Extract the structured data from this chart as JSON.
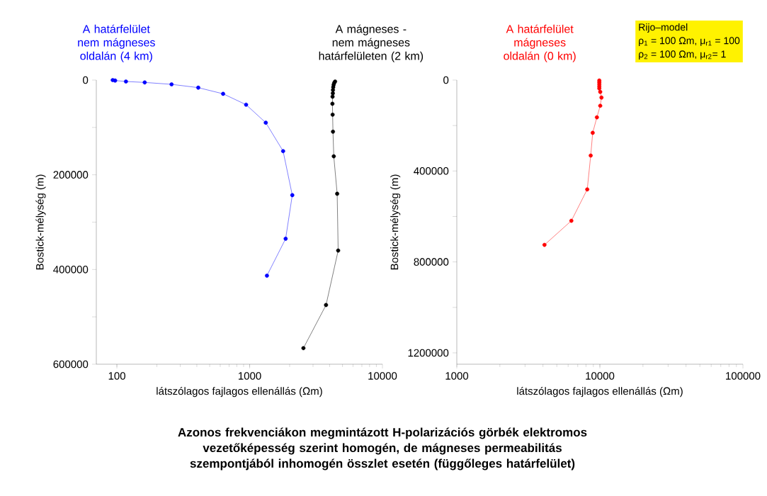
{
  "chart_data": [
    {
      "type": "line",
      "title": "Azonos frekvenciákon megmintázott H-polarizációs görbék elektromos vezetőképesség szerint homogén, de mágneses permeabilitás szempontjából inhomogén összlet esetén (függőleges határfelület)",
      "xlabel": "látszólagos fajlagos ellenállás (Ωm)",
      "ylabel": "Bostick-mélység (m)",
      "log": "x",
      "marker": "circle",
      "xlim": [
        70,
        10000
      ],
      "xticks": [
        100,
        1000,
        10000
      ],
      "ylim": [
        600000,
        0
      ],
      "yticks": [
        0,
        {
          "value": 100000,
          "label": null
        },
        200000,
        {
          "value": 300000,
          "label": null
        },
        400000,
        {
          "value": 500000,
          "label": null
        },
        600000
      ],
      "series": [
        {
          "name": "A határfelület nem mágneses oldalán (4 km)",
          "color": "#0000ff",
          "x": [
            93,
            97,
            117,
            162,
            258,
            410,
            631,
            940,
            1322,
            1786,
            2094,
            1866,
            1349
          ],
          "values": [
            0,
            1000,
            3000,
            5000,
            9000,
            16000,
            29000,
            52000,
            90000,
            150000,
            243000,
            335000,
            413000
          ]
        },
        {
          "name": "A mágneses - nem mágneses határfelületen (2 km)",
          "color": "#000000",
          "x": [
            4400,
            4330,
            4290,
            4260,
            4240,
            4230,
            4210,
            4200,
            4215,
            4240,
            4300,
            4560,
            4640,
            3760,
            2540
          ],
          "values": [
            3000,
            6000,
            10000,
            15000,
            21000,
            28000,
            35000,
            50000,
            73000,
            109000,
            161000,
            240000,
            360000,
            475000,
            566000
          ]
        }
      ]
    },
    {
      "type": "line",
      "xlabel": "látszólagos fajlagos ellenállás (Ωm)",
      "ylabel": "Bostick-mélység (m)",
      "log": "x",
      "marker": "circle",
      "xlim": [
        1000,
        100000
      ],
      "xticks": [
        1000,
        10000,
        100000
      ],
      "ylim": [
        1250000,
        0
      ],
      "yticks": [
        0,
        {
          "value": 200000,
          "label": null
        },
        400000,
        {
          "value": 600000,
          "label": null
        },
        800000,
        {
          "value": 1000000,
          "label": null
        },
        1200000
      ],
      "annotations": [
        "Rijo–model",
        "ρ$_{1}$ = 100 Ωm, μ$_{r1}$ = 100",
        "ρ$_{2}$ = 100 Ωm, μ$_{r2}$= 1"
      ],
      "series": [
        {
          "name": "A határfelület mágneses oldalán (0 km)",
          "color": "#ff0000",
          "x": [
            9910,
            9910,
            9910,
            9910,
            9910,
            10060,
            10260,
            10060,
            9530,
            8910,
            8630,
            8160,
            6320,
            4100
          ],
          "values": [
            2000,
            10000,
            19000,
            28000,
            37000,
            52000,
            77000,
            113000,
            164000,
            232000,
            332000,
            481000,
            619000,
            725000
          ]
        }
      ]
    }
  ]
}
